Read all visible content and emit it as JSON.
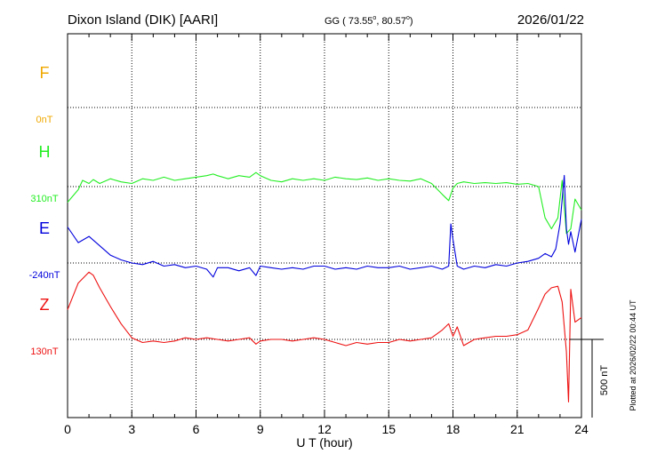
{
  "header": {
    "station": "Dixon Island (DIK)  [AARI]",
    "coords_prefix": "GG ( 73.55",
    "coords_mid": ",  80.57",
    "coords_suffix": ")",
    "degree_symbol": "o",
    "date": "2026/01/22"
  },
  "footer": {
    "plotted": "Plotted at 2026/02/22 00:44 UT",
    "scale_label": "500 nT"
  },
  "colors": {
    "F": "#f0a800",
    "H": "#22ee22",
    "E": "#0000dd",
    "Z": "#ee1111",
    "axis": "#000000"
  },
  "chart_data": {
    "type": "line",
    "xlabel": "U T (hour)",
    "xlim": [
      0,
      24
    ],
    "xticks": [
      "0",
      "3",
      "6",
      "9",
      "12",
      "15",
      "18",
      "21",
      "24"
    ],
    "scale_bar_nT": 500,
    "series": [
      {
        "name": "F",
        "baseline_label": "0nT",
        "baseline": 0,
        "x": [],
        "y": []
      },
      {
        "name": "H",
        "baseline_label": "310nT",
        "baseline": 310,
        "x": [
          0,
          0.5,
          0.7,
          1.0,
          1.2,
          1.5,
          2.0,
          2.5,
          3.0,
          3.5,
          4.0,
          4.5,
          5.0,
          5.5,
          6.0,
          6.5,
          6.8,
          7.0,
          7.5,
          8.0,
          8.5,
          8.8,
          9.0,
          9.5,
          10.0,
          10.5,
          11.0,
          11.5,
          12.0,
          12.5,
          13.0,
          13.5,
          14.0,
          14.5,
          15.0,
          15.5,
          16.0,
          16.5,
          17.0,
          17.5,
          17.8,
          18.0,
          18.2,
          18.5,
          19.0,
          19.5,
          20.0,
          20.5,
          21.0,
          21.5,
          22.0,
          22.3,
          22.6,
          22.9,
          23.1,
          23.3,
          23.5,
          23.7,
          24.0
        ],
        "y": [
          -100,
          -20,
          40,
          20,
          45,
          20,
          50,
          30,
          20,
          50,
          40,
          60,
          40,
          50,
          60,
          70,
          80,
          70,
          50,
          70,
          60,
          90,
          70,
          40,
          30,
          50,
          40,
          50,
          40,
          60,
          50,
          45,
          55,
          40,
          50,
          40,
          35,
          50,
          20,
          -50,
          -90,
          -10,
          20,
          30,
          20,
          25,
          20,
          25,
          15,
          20,
          0,
          -200,
          -270,
          -200,
          40,
          -300,
          -270,
          -80,
          -150
        ]
      },
      {
        "name": "E",
        "baseline_label": "-240nT",
        "baseline": -240,
        "x": [
          0,
          0.5,
          1.0,
          1.5,
          2.0,
          2.5,
          3.0,
          3.5,
          4.0,
          4.5,
          5.0,
          5.5,
          6.0,
          6.5,
          6.8,
          7.0,
          7.5,
          8.0,
          8.5,
          8.8,
          9.0,
          9.5,
          10.0,
          10.5,
          11.0,
          11.5,
          12.0,
          12.5,
          13.0,
          13.5,
          14.0,
          14.5,
          15.0,
          15.5,
          16.0,
          16.5,
          17.0,
          17.5,
          17.8,
          17.9,
          18.0,
          18.2,
          18.5,
          19.0,
          19.5,
          20.0,
          20.5,
          21.0,
          21.5,
          22.0,
          22.3,
          22.6,
          22.8,
          23.0,
          23.2,
          23.3,
          23.4,
          23.5,
          23.7,
          24.0
        ],
        "y": [
          230,
          130,
          170,
          110,
          50,
          20,
          0,
          -10,
          10,
          -20,
          -10,
          -30,
          -20,
          -40,
          -90,
          -30,
          -30,
          -50,
          -30,
          -80,
          -20,
          -30,
          -40,
          -30,
          -40,
          -20,
          -20,
          -40,
          -30,
          -40,
          -20,
          -30,
          -30,
          -20,
          -40,
          -30,
          -20,
          -40,
          -20,
          250,
          150,
          -20,
          -40,
          -20,
          -30,
          -10,
          -20,
          0,
          10,
          30,
          60,
          40,
          90,
          250,
          560,
          220,
          120,
          200,
          70,
          280
        ]
      },
      {
        "name": "Z",
        "baseline_label": "130nT",
        "baseline": 130,
        "x": [
          0,
          0.5,
          1.0,
          1.2,
          1.5,
          2.0,
          2.5,
          3.0,
          3.5,
          4.0,
          4.5,
          5.0,
          5.5,
          6.0,
          6.5,
          7.0,
          7.5,
          8.0,
          8.5,
          8.8,
          9.0,
          9.5,
          10.0,
          10.5,
          11.0,
          11.5,
          12.0,
          12.5,
          13.0,
          13.5,
          14.0,
          14.5,
          15.0,
          15.5,
          16.0,
          16.5,
          17.0,
          17.5,
          17.8,
          18.0,
          18.2,
          18.5,
          19.0,
          19.5,
          20.0,
          20.5,
          21.0,
          21.5,
          22.0,
          22.3,
          22.6,
          22.9,
          23.1,
          23.3,
          23.4,
          23.5,
          23.7,
          24.0
        ],
        "y": [
          190,
          360,
          430,
          410,
          330,
          210,
          100,
          10,
          -20,
          -10,
          -20,
          -10,
          10,
          0,
          10,
          0,
          -10,
          0,
          10,
          -30,
          -10,
          0,
          0,
          -10,
          0,
          10,
          0,
          -20,
          -40,
          -20,
          -30,
          -20,
          -20,
          0,
          -10,
          0,
          10,
          60,
          100,
          20,
          80,
          -40,
          0,
          10,
          20,
          20,
          30,
          60,
          200,
          290,
          330,
          340,
          240,
          -80,
          -400,
          320,
          110,
          140
        ]
      }
    ]
  }
}
